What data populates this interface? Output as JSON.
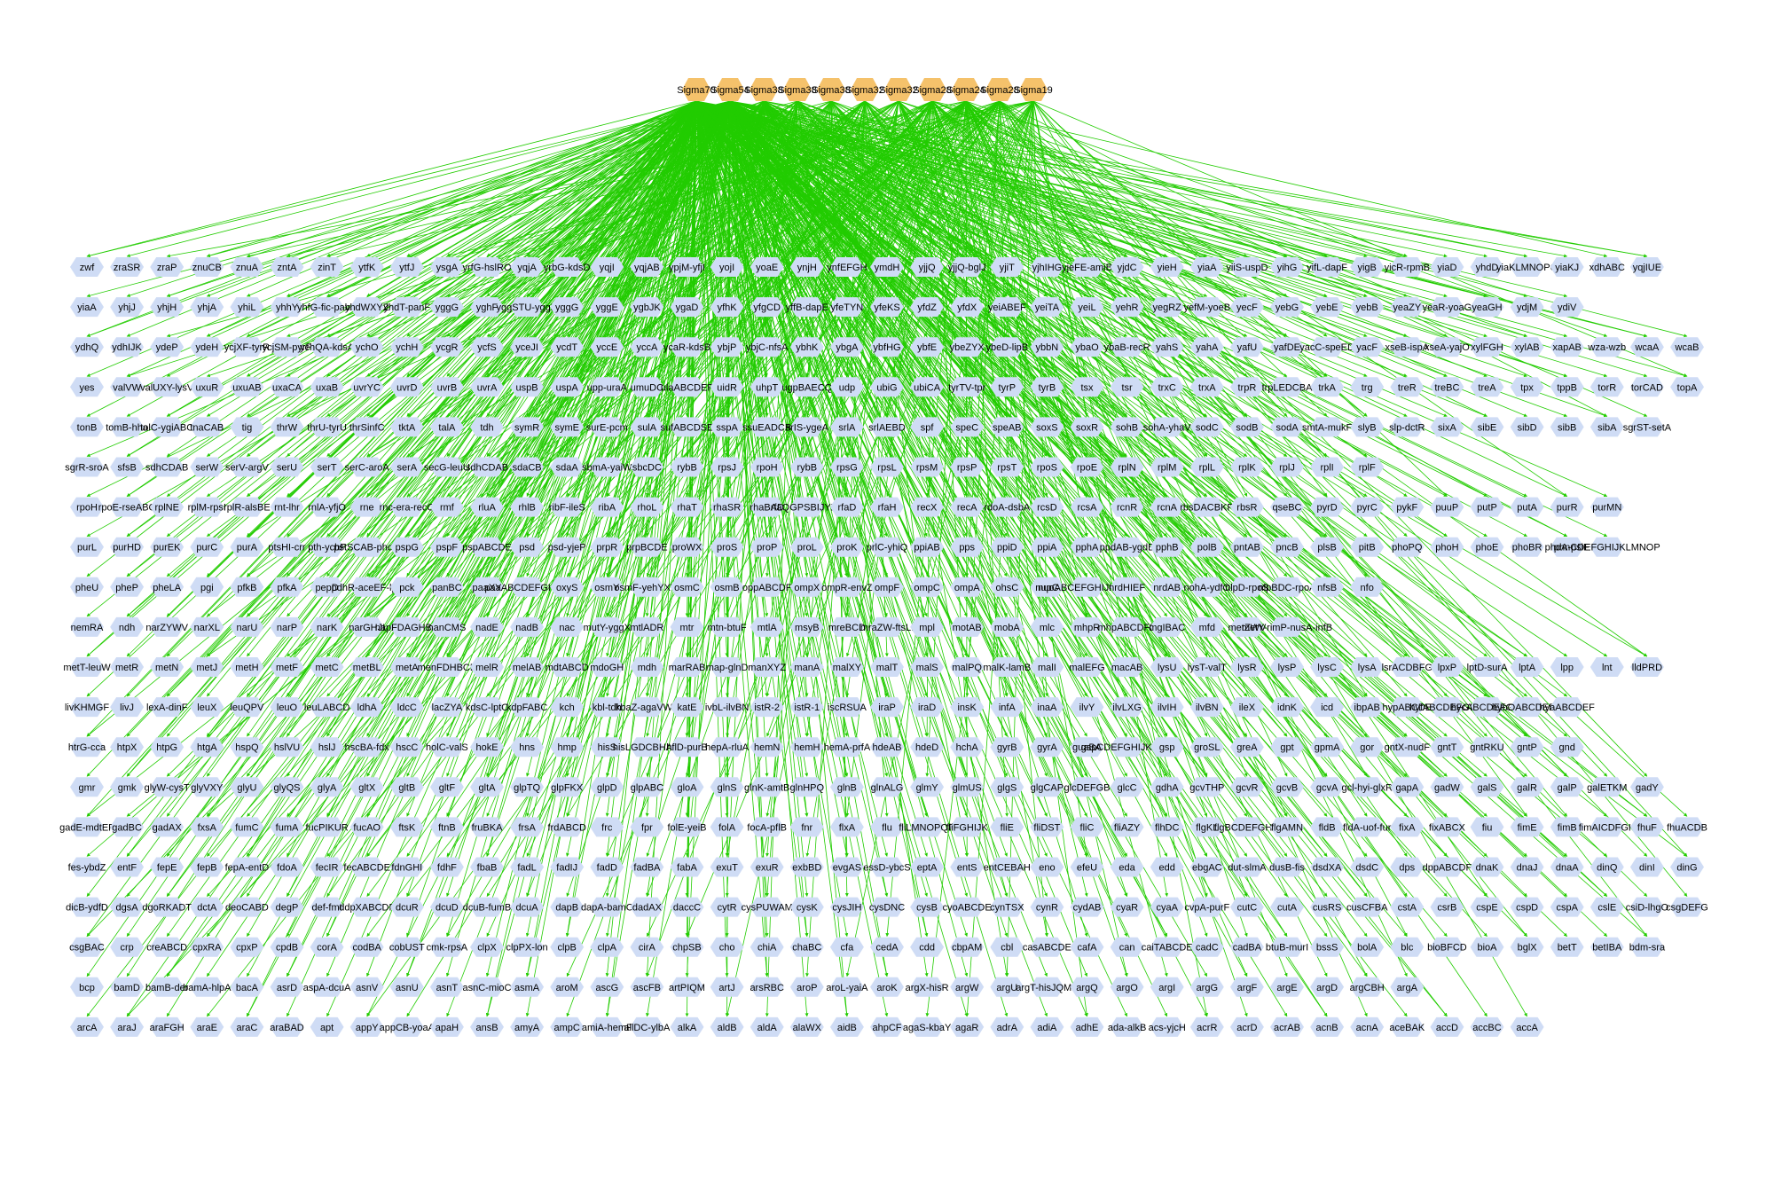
{
  "diagram": {
    "colors": {
      "edge": "#22cc00",
      "sigma_node": "#f5c26b",
      "gene_node": "#cfdcf5",
      "label": "#000000"
    },
    "sigma_nodes": [
      "Sigma70",
      "Sigma54",
      "Sigma38",
      "Sigma38",
      "Sigma38",
      "Sigma32",
      "Sigma32",
      "Sigma28",
      "Sigma24",
      "Sigma28",
      "Sigma19"
    ],
    "gene_rows": [
      [
        "zwf",
        "zraSR",
        "zraP",
        "znuCB",
        "znuA",
        "zntA",
        "zinT",
        "ytfK",
        "ytfJ",
        "ysgA",
        "yrfG-hslRO",
        "yqjA",
        "yrbG-kdsD",
        "yqjI",
        "yqjAB",
        "ypjM-yfjI",
        "yojI",
        "yoaE",
        "ynjH",
        "ynfEFGH",
        "ymdH",
        "yjjQ",
        "yjjQ-bglJ",
        "yjiT",
        "yjhIHG",
        "yjeFE-amiB",
        "yjdC",
        "yieH",
        "yiaA",
        "yiiS-uspD",
        "yihG",
        "yifL-dapF",
        "yigB",
        "yicR-rpmB",
        "yiaD",
        "yhdD",
        "yiaKLMNOPQ",
        "yiaKJ",
        "xdhABC",
        "yqjIUE"
      ],
      [
        "yiaA",
        "yhjJ",
        "yhjH",
        "yhjA",
        "yhiL",
        "yhhY",
        "yhfG-fic-pabA",
        "yhdWXYZ",
        "yhdT-panF",
        "yggG",
        "yghF",
        "yggSTU-yggD",
        "yggG",
        "yggE",
        "ygbJK",
        "ygaD",
        "yfhK",
        "yfgCD",
        "yffB-dapE",
        "yfeTYN",
        "yfeKS",
        "yfdZ",
        "yfdX",
        "yeiABEF",
        "yeiTA",
        "yeiL",
        "yehR",
        "yegRZ",
        "yefM-yoeB",
        "yecF",
        "yebG",
        "yebE",
        "yebB",
        "yeaZY",
        "yeaR-yoaG",
        "yeaGH",
        "ydjM",
        "ydiV"
      ],
      [
        "ydhQ",
        "ydhIJK",
        "ydeP",
        "ydeH",
        "ycjXF-tyrR",
        "ycjSM-pyrF",
        "ychQA-kdsA",
        "ychO",
        "ychH",
        "ycgR",
        "ycfS",
        "yceJI",
        "ycdT",
        "yccE",
        "yccA",
        "ycaR-kdsB",
        "ybjP",
        "ybjC-nfsA",
        "ybhK",
        "ybgA",
        "ybfHG",
        "ybfE",
        "ybeZYX",
        "ybeD-lipB",
        "ybbN",
        "ybaO",
        "ybaB-recR",
        "yahS",
        "yahA",
        "yafU",
        "yafDE",
        "yacC-speED",
        "yacF",
        "xseB-ispA",
        "xseA-yajO",
        "xylFGH",
        "xylAB",
        "xapAB",
        "wza-wzb",
        "wcaA",
        "wcaB"
      ],
      [
        "yes",
        "valVW",
        "valUXY-lysV",
        "uxuR",
        "uxuAB",
        "uxaCA",
        "uxaB",
        "uvrYC",
        "uvrD",
        "uvrB",
        "uvrA",
        "uspB",
        "uspA",
        "upp-uraA",
        "umuDC",
        "ulaABCDEF",
        "uidR",
        "uhpT",
        "ugpBAECQ",
        "udp",
        "ubiG",
        "ubiCA",
        "tyrTV-tpr",
        "tyrP",
        "tyrB",
        "tsx",
        "tsr",
        "trxC",
        "trxA",
        "trpR",
        "trpLEDCBA",
        "trkA",
        "trg",
        "treR",
        "treBC",
        "treA",
        "tpx",
        "tppB",
        "torR",
        "torCAD",
        "topA"
      ],
      [
        "tonB",
        "tomB-hha",
        "tolC-ygiABC",
        "tnaCAB",
        "tig",
        "thrW",
        "thrU-tyrU",
        "thrSinfC",
        "tktA",
        "talA",
        "tdh",
        "symR",
        "symE",
        "surE-pcm",
        "sulA",
        "sufABCDSE",
        "sspA",
        "ssuEADCB",
        "srIS-ygeA",
        "srlA",
        "srlAEBD",
        "spf",
        "speC",
        "speAB",
        "soxS",
        "soxR",
        "sohB",
        "sohA-yhaV",
        "sodC",
        "sodB",
        "sodA",
        "smtA-mukF",
        "slyB",
        "slp-dctR",
        "sixA",
        "sibE",
        "sibD",
        "sibB",
        "sibA",
        "sgrST-setA"
      ],
      [
        "sgrR-sroA",
        "sfsB",
        "sdhCDAB",
        "serW",
        "serV-argV",
        "serU",
        "serT",
        "serC-aroA",
        "serA",
        "secG-leuU",
        "sdhCDAB",
        "sdaCB",
        "sdaA",
        "sbmA-yaiW",
        "sbcDC",
        "rybB",
        "rpsJ",
        "rpoH",
        "rybB",
        "rpsG",
        "rpsL",
        "rpsM",
        "rpsP",
        "rpsT",
        "rpoS",
        "rpoE",
        "rplN",
        "rplM",
        "rplL",
        "rplK",
        "rplJ",
        "rplI",
        "rplF"
      ],
      [
        "rpoH",
        "rpoE-rseABC",
        "rplNE",
        "rplM-rpsI",
        "rplR-alsBE",
        "rnt-lhr",
        "rnlA-yfjO",
        "rne",
        "rnc-era-recO",
        "rmf",
        "rluA",
        "rhlB",
        "ribF-ileS",
        "ribA",
        "rhoL",
        "rhaT",
        "rhaSR",
        "rhaBAD",
        "rfaQGPSBIJYZK",
        "rfaD",
        "rfaH",
        "recX",
        "recA",
        "rdoA-dsbA",
        "rcsD",
        "rcsA",
        "rcnR",
        "rcnA",
        "rbsDACBKR",
        "rbsR",
        "qseBC",
        "pyrD",
        "pyrC",
        "pykF",
        "puuP",
        "putP",
        "putA",
        "purR",
        "purMN"
      ],
      [
        "purL",
        "purHD",
        "purEK",
        "purC",
        "purA",
        "ptsHI-crr",
        "pth-ychF",
        "pstSCAB-phoU",
        "pspG",
        "pspF",
        "pspABCDE",
        "psd",
        "psd-yjeP",
        "prpR",
        "prpBCDE",
        "proWX",
        "proS",
        "proP",
        "proL",
        "proK",
        "prlC-yhiQ",
        "ppiAB",
        "pps",
        "ppiD",
        "ppiA",
        "pphA",
        "ppdAB-ygdB",
        "pphB",
        "polB",
        "pntAB",
        "pncB",
        "plsB",
        "pitB",
        "phoPQ",
        "phoH",
        "phoE",
        "phoBR",
        "phoA-psiF",
        "phnCDEFGHIJKLMNOP"
      ],
      [
        "pheU",
        "pheP",
        "pheLA",
        "pgi",
        "pfkB",
        "pfkA",
        "pepD",
        "pdhR-aceEF-lpd",
        "pck",
        "panBC",
        "paaXY",
        "paaABCDEFGHIJK",
        "oxyS",
        "osmY",
        "osmF-yehYXW",
        "osmC",
        "osmB",
        "oppABCDF",
        "ompX",
        "ompR-envZ",
        "ompF",
        "ompC",
        "ompA",
        "ohsC",
        "nupC",
        "nuoABCEFGHIJKLMN",
        "nrdHIEF",
        "nrdAB",
        "nohA-ydfO",
        "nlpD-rpoS",
        "nlpBDC-rpoA",
        "nfsB",
        "nfo"
      ],
      [
        "nemRA",
        "ndh",
        "narZYWV",
        "narXL",
        "narU",
        "narP",
        "narK",
        "narGHJI",
        "napFDAGHBC",
        "nanCMS",
        "nadE",
        "nadB",
        "nac",
        "mutY-yggX",
        "mtlADR",
        "mtr",
        "mtn-btuF",
        "mtlA",
        "msyB",
        "mreBCD",
        "mraZW-ftsLI",
        "mpl",
        "motAB",
        "mobA",
        "mlc",
        "mhpR",
        "mhpABCDFE",
        "mgIBAC",
        "mfd",
        "metZWV",
        "metY-rimP-nusA-infB"
      ],
      [
        "metT-leuW",
        "metR",
        "metN",
        "metJ",
        "metH",
        "metF",
        "metC",
        "metBL",
        "metA",
        "menFDHBCE",
        "melR",
        "melAB",
        "mdtABCD",
        "mdoGH",
        "mdh",
        "marRAB",
        "map-glnD",
        "manXYZ",
        "manA",
        "malXY",
        "malT",
        "malS",
        "malPQ",
        "malK-lamB",
        "malI",
        "malEFG",
        "macAB",
        "lysU",
        "lysT-valT",
        "lysR",
        "lysP",
        "lysC",
        "lysA",
        "lsrACDBFG",
        "lpxP",
        "lptD-surA",
        "lptA",
        "lpp",
        "lnt",
        "lldPRD"
      ],
      [
        "livKHMGF",
        "livJ",
        "lexA-dinF",
        "leuX",
        "leuQPV",
        "leuO",
        "leuLABCD",
        "ldhA",
        "ldcC",
        "lacZYA",
        "kdsC-lptC",
        "kdpFABC",
        "kch",
        "kbl-tdh",
        "kbaZ-agaVWA",
        "katE",
        "ivbL-ilvBN",
        "istR-2",
        "istR-1",
        "iscRSUA",
        "iraP",
        "iraD",
        "insK",
        "infA",
        "inaA",
        "ilvY",
        "ilvLXG",
        "ilvIH",
        "ilvBN",
        "ileX",
        "idnK",
        "icd",
        "ibpAB",
        "hypABCDE",
        "hyfABCDEFGHIJ",
        "hycABCDEFGHI",
        "hybOABCDEFG",
        "hyaABCDEF"
      ],
      [
        "htrG-cca",
        "htpX",
        "htpG",
        "htgA",
        "hspQ",
        "hslVU",
        "hslJ",
        "hscBA-fdx",
        "hscC",
        "holC-valS",
        "hokE",
        "hns",
        "hmp",
        "hisS",
        "hisLGDCBHAFI",
        "hflD-purB",
        "hepA-rluA",
        "hemN",
        "hemH",
        "hemA-prfA",
        "hdeAB",
        "hdeD",
        "hchA",
        "gyrB",
        "gyrA",
        "guaBA",
        "gspCDEFGHIJKLMO",
        "gsp",
        "groSL",
        "greA",
        "gpt",
        "gpmA",
        "gor",
        "gntX-nudF",
        "gntT",
        "gntRKU",
        "gntP",
        "gnd"
      ],
      [
        "gmr",
        "gmk",
        "glyW-cysT",
        "glyVXY",
        "glyU",
        "glyQS",
        "glyA",
        "gltX",
        "gltB",
        "gltF",
        "gltA",
        "glpTQ",
        "glpFKX",
        "glpD",
        "glpABC",
        "gloA",
        "glnS",
        "glnK-amtB",
        "glnHPQ",
        "glnB",
        "glnALG",
        "glmY",
        "glmUS",
        "glgS",
        "glgCAP",
        "glcDEFGB",
        "glcC",
        "gdhA",
        "gcvTHP",
        "gcvR",
        "gcvB",
        "gcvA",
        "gcl-hyi-glxR",
        "gapA",
        "gadW",
        "galS",
        "galR",
        "galP",
        "galETKM",
        "gadY"
      ],
      [
        "gadE-mdtEF",
        "gadBC",
        "gadAX",
        "fxsA",
        "fumC",
        "fumA",
        "fucPIKUR",
        "fucAO",
        "ftsK",
        "ftnB",
        "fruBKA",
        "frsA",
        "frdABCD",
        "frc",
        "fpr",
        "folE-yeiB",
        "folA",
        "focA-pflB",
        "fnr",
        "flxA",
        "flu",
        "fliLMNOPQR",
        "fliFGHIJK",
        "fliE",
        "fliDST",
        "fliC",
        "fliAZY",
        "flhDC",
        "flgKL",
        "flgBCDEFGHIJ",
        "flgAMN",
        "fldB",
        "fldA-uof-fur",
        "fixA",
        "fixABCX",
        "fiu",
        "fimE",
        "fimB",
        "fimAICDFGH",
        "fhuF",
        "fhuACDB"
      ],
      [
        "fes-ybdZ",
        "entF",
        "fepE",
        "fepB",
        "fepA-entD",
        "fdoA",
        "fecIR",
        "fecABCDE",
        "fdnGHI",
        "fdhF",
        "fbaB",
        "fadL",
        "fadIJ",
        "fadD",
        "fadBA",
        "fabA",
        "exuT",
        "exuR",
        "exbBD",
        "evgAS",
        "essD-ybcS",
        "eptA",
        "entS",
        "entCEBAH",
        "eno",
        "efeU",
        "eda",
        "edd",
        "ebgAC",
        "dut-slmA",
        "dusB-fis",
        "dsdXA",
        "dsdC",
        "dps",
        "dppABCDF",
        "dnaK",
        "dnaJ",
        "dnaA",
        "dinQ",
        "dinI",
        "dinG"
      ],
      [
        "dicB-ydfD",
        "dgsA",
        "dgoRKADT",
        "dctA",
        "deoCABD",
        "degP",
        "def-fmt",
        "ddpXABCDF",
        "dcuR",
        "dcuD",
        "dcuB-fumB",
        "dcuA",
        "dapB",
        "dapA-bamC",
        "dadAX",
        "daccC",
        "cytR",
        "cysPUWAM",
        "cysK",
        "cysJIH",
        "cysDNC",
        "cysB",
        "cyoABCDE",
        "cynTSX",
        "cynR",
        "cydAB",
        "cyaR",
        "cyaA",
        "cvpA-purF",
        "cutC",
        "cutA",
        "cusRS",
        "cusCFBA",
        "cstA",
        "csrB",
        "cspE",
        "cspD",
        "cspA",
        "cslE",
        "csiD-lhgO",
        "csgDEFG"
      ],
      [
        "csgBAC",
        "crp",
        "creABCD",
        "cpxRA",
        "cpxP",
        "cpdB",
        "corA",
        "codBA",
        "cobUST",
        "cmk-rpsA",
        "clpX",
        "clpPX-lon",
        "clpB",
        "clpA",
        "cirA",
        "chpSB",
        "cho",
        "chiA",
        "chaBC",
        "cfa",
        "cedA",
        "cdd",
        "cbpAM",
        "cbl",
        "casABCDE",
        "cafA",
        "can",
        "caiTABCDE",
        "cadC",
        "cadBA",
        "btuB-murI",
        "bssS",
        "bolA",
        "blc",
        "bioBFCD",
        "bioA",
        "bglX",
        "betT",
        "betIBA",
        "bdm-sra"
      ],
      [
        "bcp",
        "bamD",
        "bamB-der",
        "bamA-hlpA",
        "bacA",
        "asrD",
        "aspA-dcuA",
        "asnV",
        "asnU",
        "asnT",
        "asnC-mioC",
        "asmA",
        "aroM",
        "ascG",
        "ascFB",
        "artPIQM",
        "artJ",
        "arsRBC",
        "aroP",
        "aroL-yaiA",
        "aroK",
        "argX-hisR",
        "argW",
        "argU",
        "argT-hisJQMP",
        "argQ",
        "argO",
        "argI",
        "argG",
        "argF",
        "argE",
        "argD",
        "argCBH",
        "argA"
      ],
      [
        "arcA",
        "araJ",
        "araFGH",
        "araE",
        "araC",
        "araBAD",
        "apt",
        "appY",
        "appCB-yoaA",
        "apaH",
        "ansB",
        "amyA",
        "ampC",
        "amiA-hemF",
        "allDC-ylbA",
        "alkA",
        "aldB",
        "aldA",
        "alaWX",
        "aidB",
        "ahpCF",
        "agaS-kbaY",
        "agaR",
        "adrA",
        "adiA",
        "adhE",
        "ada-alkB",
        "acs-yjcH",
        "acrR",
        "acrD",
        "acrAB",
        "acnB",
        "acnA",
        "aceBAK",
        "accD",
        "accBC",
        "accA"
      ]
    ]
  }
}
